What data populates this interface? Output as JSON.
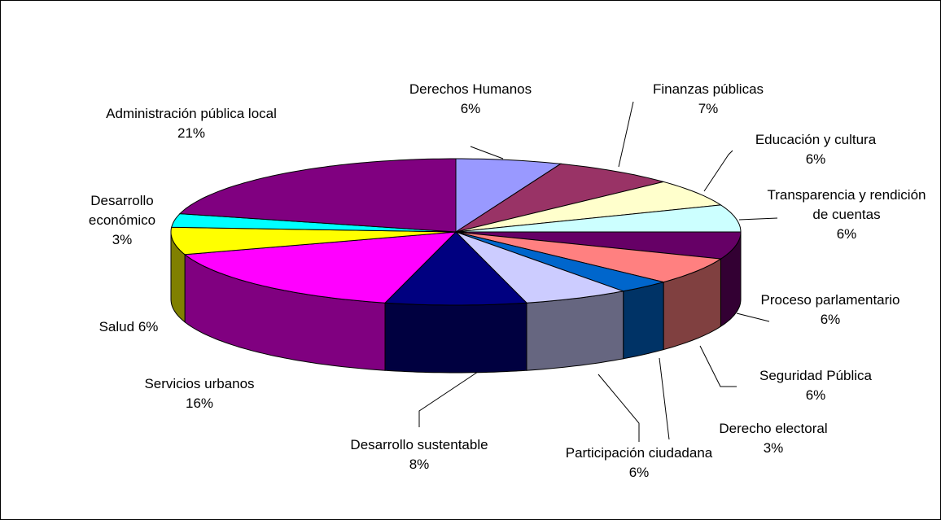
{
  "chart_data": {
    "type": "pie3d",
    "categories": [
      "Derechos Humanos",
      "Finanzas públicas",
      "Educación y cultura",
      "Transparencia y rendición de cuentas",
      "Proceso parlamentario",
      "Seguridad Pública",
      "Derecho electoral",
      "Participación ciudadana",
      "Desarrollo sustentable",
      "Servicios urbanos",
      "Salud",
      "Desarrollo económico",
      "Administración pública local"
    ],
    "values": [
      6,
      7,
      6,
      6,
      6,
      6,
      3,
      6,
      8,
      16,
      6,
      3,
      21
    ],
    "value_labels": [
      "6%",
      "7%",
      "6%",
      "6%",
      "6%",
      "6%",
      "3%",
      "6%",
      "8%",
      "16%",
      "6%",
      "3%",
      "21%"
    ],
    "colors": [
      "#9999ff",
      "#993366",
      "#ffffcc",
      "#ccffff",
      "#660066",
      "#ff8080",
      "#0066cc",
      "#ccccff",
      "#000080",
      "#ff00ff",
      "#ffff00",
      "#00ffff",
      "#800080"
    ]
  }
}
